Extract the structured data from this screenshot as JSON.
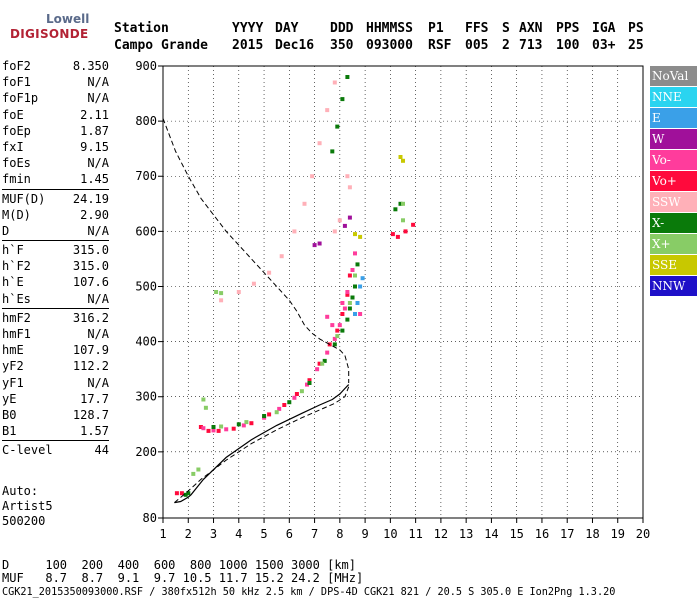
{
  "logo": {
    "line1": "Lowell",
    "line2": "DIGISONDE"
  },
  "header": {
    "labels": [
      "Station",
      "YYYY",
      "DAY",
      "DDD",
      "HHMMSS",
      "P1",
      "FFS",
      "S",
      "AXN",
      "PPS",
      "IGA",
      "PS"
    ],
    "values": [
      "Campo Grande",
      "2015",
      "Dec16",
      "350",
      "093000",
      "RSF",
      "005",
      "2",
      "713",
      "100",
      "03+",
      "25"
    ]
  },
  "params": [
    [
      [
        "foF2",
        "8.350"
      ],
      [
        "foF1",
        "N/A"
      ],
      [
        "foF1p",
        "N/A"
      ],
      [
        "foE",
        "2.11"
      ],
      [
        "foEp",
        "1.87"
      ],
      [
        "fxI",
        "9.15"
      ],
      [
        "foEs",
        "N/A"
      ],
      [
        "fmin",
        "1.45"
      ]
    ],
    [
      [
        "MUF(D)",
        "24.19"
      ],
      [
        "M(D)",
        "2.90"
      ],
      [
        "D",
        "N/A"
      ]
    ],
    [
      [
        "h`F",
        "315.0"
      ],
      [
        "h`F2",
        "315.0"
      ],
      [
        "h`E",
        "107.6"
      ],
      [
        "h`Es",
        "N/A"
      ]
    ],
    [
      [
        "hmF2",
        "316.2"
      ],
      [
        "hmF1",
        "N/A"
      ],
      [
        "hmE",
        "107.9"
      ],
      [
        "yF2",
        "112.2"
      ],
      [
        "yF1",
        "N/A"
      ],
      [
        "yE",
        "17.7"
      ],
      [
        "B0",
        "128.7"
      ],
      [
        "B1",
        "1.57"
      ]
    ],
    [
      [
        "C-level",
        "44"
      ]
    ]
  ],
  "auto": {
    "l1": "Auto:",
    "l2": "Artist5",
    "l3": "500200"
  },
  "legend": [
    {
      "label": "NoVal",
      "color": "#8c8c8c"
    },
    {
      "label": "NNE",
      "color": "#2ad4f0"
    },
    {
      "label": "E",
      "color": "#3aa0e8"
    },
    {
      "label": "W",
      "color": "#a0109a"
    },
    {
      "label": "Vo-",
      "color": "#ff3c9c"
    },
    {
      "label": "Vo+",
      "color": "#ff0a3c"
    },
    {
      "label": "SSW",
      "color": "#ffb0b8"
    },
    {
      "label": "X-",
      "color": "#0a7a0a"
    },
    {
      "label": "X+",
      "color": "#88cc66"
    },
    {
      "label": "SSE",
      "color": "#c8c800"
    },
    {
      "label": "NNW",
      "color": "#1e10c8"
    }
  ],
  "footer": {
    "d_row": "D     100  200  400  600  800 1000 1500 3000 [km]",
    "muf_row": "MUF   8.7  8.7  9.1  9.7 10.5 11.7 15.2 24.2 [MHz]",
    "file_row": "CGK21_2015350093000.RSF / 380fx512h 50 kHz 2.5 km / DPS-4D CGK21 821 / 20.5 S 305.0 E Ion2Png 1.3.20"
  },
  "chart_data": {
    "type": "scatter",
    "xlim": [
      1,
      20
    ],
    "ylim": [
      80,
      900
    ],
    "x_ticks": [
      1,
      2,
      3,
      4,
      5,
      6,
      7,
      8,
      9,
      10,
      11,
      12,
      13,
      14,
      15,
      16,
      17,
      18,
      19,
      20
    ],
    "y_ticks": [
      80,
      200,
      300,
      400,
      500,
      600,
      700,
      800,
      900
    ],
    "grid": true,
    "series": [
      {
        "name": "Vo+",
        "color": "#ff0a3c",
        "points": [
          [
            2.5,
            245
          ],
          [
            2.8,
            238
          ],
          [
            3.2,
            238
          ],
          [
            3.8,
            242
          ],
          [
            4.5,
            252
          ],
          [
            5.2,
            268
          ],
          [
            5.8,
            285
          ],
          [
            6.3,
            305
          ],
          [
            6.8,
            330
          ],
          [
            7.2,
            360
          ],
          [
            7.6,
            395
          ],
          [
            7.9,
            420
          ],
          [
            8.1,
            450
          ],
          [
            8.3,
            485
          ],
          [
            8.4,
            520
          ],
          [
            10.1,
            595
          ],
          [
            10.3,
            590
          ],
          [
            10.6,
            600
          ],
          [
            10.9,
            612
          ],
          [
            1.55,
            125
          ],
          [
            1.75,
            125
          ]
        ]
      },
      {
        "name": "Vo-",
        "color": "#ff3c9c",
        "points": [
          [
            2.6,
            243
          ],
          [
            3.0,
            239
          ],
          [
            3.5,
            241
          ],
          [
            4.2,
            248
          ],
          [
            5.0,
            262
          ],
          [
            5.6,
            278
          ],
          [
            6.2,
            298
          ],
          [
            6.7,
            322
          ],
          [
            7.1,
            350
          ],
          [
            7.5,
            380
          ],
          [
            7.8,
            405
          ],
          [
            8.0,
            430
          ],
          [
            8.2,
            460
          ],
          [
            8.3,
            490
          ],
          [
            8.5,
            530
          ],
          [
            8.6,
            560
          ],
          [
            7.7,
            430
          ],
          [
            7.5,
            445
          ],
          [
            8.8,
            450
          ],
          [
            8.1,
            470
          ]
        ]
      },
      {
        "name": "X-",
        "color": "#0a7a0a",
        "points": [
          [
            3.0,
            245
          ],
          [
            4.0,
            250
          ],
          [
            5.0,
            265
          ],
          [
            6.0,
            290
          ],
          [
            6.8,
            325
          ],
          [
            7.4,
            365
          ],
          [
            7.8,
            395
          ],
          [
            8.1,
            420
          ],
          [
            8.4,
            460
          ],
          [
            8.6,
            500
          ],
          [
            8.7,
            540
          ],
          [
            8.5,
            480
          ],
          [
            8.3,
            440
          ],
          [
            1.9,
            122
          ],
          [
            2.0,
            125
          ],
          [
            10.2,
            640
          ],
          [
            10.4,
            650
          ],
          [
            7.7,
            745
          ],
          [
            7.9,
            790
          ],
          [
            8.1,
            840
          ],
          [
            8.3,
            880
          ]
        ]
      },
      {
        "name": "X+",
        "color": "#88cc66",
        "points": [
          [
            2.6,
            295
          ],
          [
            2.7,
            280
          ],
          [
            3.3,
            246
          ],
          [
            4.3,
            254
          ],
          [
            5.5,
            272
          ],
          [
            6.5,
            310
          ],
          [
            7.3,
            360
          ],
          [
            7.9,
            410
          ],
          [
            8.4,
            470
          ],
          [
            8.6,
            520
          ],
          [
            2.2,
            160
          ],
          [
            2.4,
            168
          ],
          [
            10.5,
            620
          ],
          [
            10.5,
            650
          ],
          [
            3.1,
            490
          ],
          [
            3.3,
            488
          ]
        ]
      },
      {
        "name": "E",
        "color": "#3aa0e8",
        "points": [
          [
            8.7,
            470
          ],
          [
            8.8,
            500
          ],
          [
            8.9,
            515
          ],
          [
            8.6,
            450
          ]
        ]
      },
      {
        "name": "SSW",
        "color": "#ffb0b8",
        "points": [
          [
            3.3,
            475
          ],
          [
            4.0,
            490
          ],
          [
            4.6,
            505
          ],
          [
            5.2,
            525
          ],
          [
            5.7,
            555
          ],
          [
            6.2,
            600
          ],
          [
            6.6,
            650
          ],
          [
            6.9,
            700
          ],
          [
            7.2,
            760
          ],
          [
            7.5,
            820
          ],
          [
            7.8,
            870
          ],
          [
            8.3,
            700
          ],
          [
            8.4,
            680
          ],
          [
            7.8,
            600
          ],
          [
            8.0,
            620
          ]
        ]
      },
      {
        "name": "SSE",
        "color": "#c8c800",
        "points": [
          [
            8.8,
            590
          ],
          [
            8.6,
            595
          ],
          [
            10.4,
            735
          ],
          [
            10.5,
            728
          ]
        ]
      },
      {
        "name": "W",
        "color": "#a0109a",
        "points": [
          [
            8.2,
            610
          ],
          [
            8.4,
            625
          ],
          [
            7.0,
            575
          ],
          [
            7.2,
            578
          ]
        ]
      }
    ],
    "virtual_height_curve": [
      [
        1.45,
        108
      ],
      [
        1.7,
        110
      ],
      [
        2.0,
        118
      ],
      [
        2.11,
        122
      ],
      [
        2.6,
        150
      ],
      [
        3.5,
        190
      ],
      [
        4.5,
        222
      ],
      [
        5.5,
        248
      ],
      [
        6.5,
        270
      ],
      [
        7.2,
        285
      ],
      [
        7.7,
        295
      ],
      [
        8.0,
        305
      ],
      [
        8.2,
        315
      ],
      [
        8.35,
        322
      ]
    ],
    "profile_curve": [
      [
        1.0,
        805
      ],
      [
        1.5,
        745
      ],
      [
        2.0,
        700
      ],
      [
        2.5,
        660
      ],
      [
        3.0,
        630
      ],
      [
        3.5,
        600
      ],
      [
        4.0,
        575
      ],
      [
        4.5,
        550
      ],
      [
        5.0,
        525
      ],
      [
        5.5,
        500
      ],
      [
        6.0,
        475
      ],
      [
        6.3,
        455
      ],
      [
        6.6,
        430
      ],
      [
        6.9,
        415
      ],
      [
        7.2,
        405
      ],
      [
        7.6,
        395
      ],
      [
        8.0,
        385
      ],
      [
        8.2,
        375
      ],
      [
        8.35,
        350
      ],
      [
        8.35,
        325
      ]
    ],
    "profile_lower": [
      [
        1.45,
        108
      ],
      [
        1.9,
        125
      ],
      [
        2.5,
        150
      ],
      [
        3.5,
        185
      ],
      [
        4.5,
        215
      ],
      [
        5.5,
        240
      ],
      [
        6.5,
        262
      ],
      [
        7.2,
        276
      ],
      [
        7.8,
        288
      ],
      [
        8.2,
        300
      ],
      [
        8.35,
        318
      ]
    ]
  }
}
